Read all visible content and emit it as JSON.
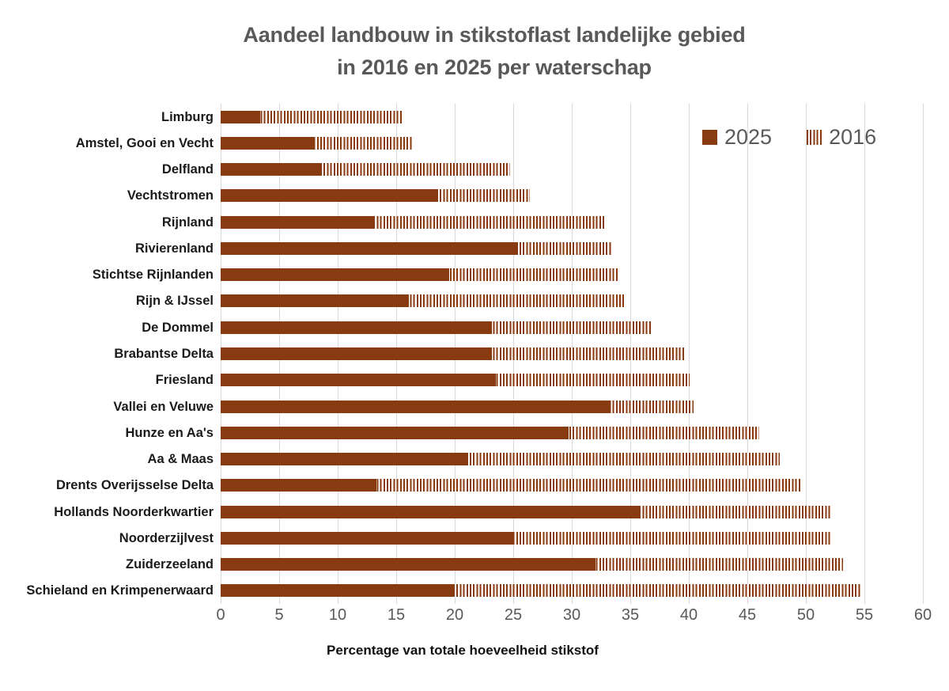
{
  "title": {
    "line1": "Aandeel landbouw in stikstoflast landelijke gebied",
    "line2": "in 2016 en 2025 per waterschap"
  },
  "legend": {
    "items": [
      {
        "label": "2025",
        "pattern": "solid"
      },
      {
        "label": "2016",
        "pattern": "striped"
      }
    ]
  },
  "axis": {
    "xlabel": "Percentage van totale hoeveelheid stikstof",
    "ticks": [
      0,
      5,
      10,
      15,
      20,
      25,
      30,
      35,
      40,
      45,
      50,
      55,
      60
    ],
    "xmin": 0,
    "xmax": 60
  },
  "colors": {
    "bar": "#883B10",
    "title_text": "#595959",
    "tick_text": "#595959",
    "category_text": "#1a1a1a",
    "grid": "#D9D9D9",
    "background": "#FFFFFF"
  },
  "chart_data": {
    "type": "bar",
    "orientation": "horizontal",
    "title": "Aandeel landbouw in stikstoflast landelijke gebied in 2016 en 2025 per waterschap",
    "xlabel": "Percentage van totale hoeveelheid stikstof",
    "ylabel": "",
    "xlim": [
      0,
      60
    ],
    "grid": true,
    "legend_position": "top-right",
    "categories": [
      "Limburg",
      "Amstel, Gooi en Vecht",
      "Delfland",
      "Vechtstromen",
      "Rijnland",
      "Rivierenland",
      "Stichtse Rijnlanden",
      "Rijn & IJssel",
      "De Dommel",
      "Brabantse Delta",
      "Friesland",
      "Vallei en Veluwe",
      "Hunze en Aa's",
      "Aa & Maas",
      "Drents Overijsselse Delta",
      "Hollands Noorderkwartier",
      "Noorderzijlvest",
      "Zuiderzeeland",
      "Schieland en Krimpenerwaard"
    ],
    "series": [
      {
        "name": "2025",
        "pattern": "solid",
        "values": [
          3.4,
          8.0,
          8.5,
          18.5,
          13.2,
          25.3,
          19.5,
          16.1,
          23.2,
          23.2,
          23.5,
          33.3,
          29.7,
          21.0,
          13.3,
          35.9,
          25.0,
          32.0,
          20.0
        ]
      },
      {
        "name": "2016",
        "pattern": "striped",
        "values": [
          15.5,
          16.4,
          24.7,
          26.4,
          32.8,
          33.4,
          33.9,
          34.5,
          36.8,
          39.7,
          40.1,
          40.4,
          46.0,
          47.8,
          49.5,
          52.1,
          52.1,
          53.2,
          54.7
        ]
      }
    ]
  }
}
